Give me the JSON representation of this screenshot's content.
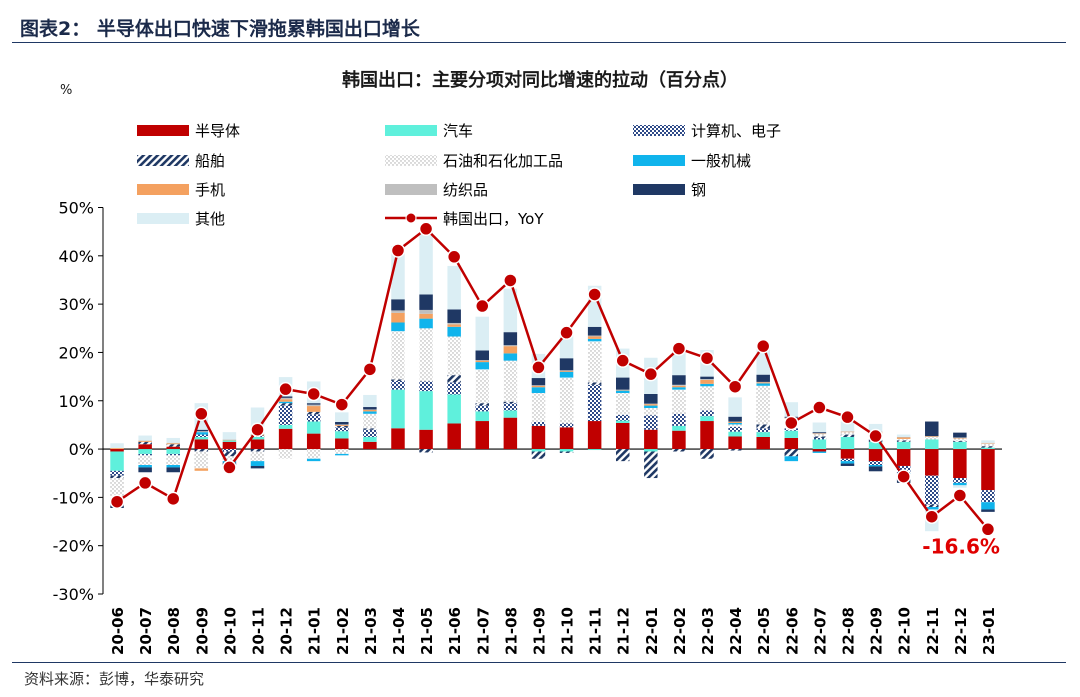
{
  "figure_label": "图表2：  半导体出口快速下滑拖累韩国出口增长",
  "source_text": "资料来源：彭博，华泰研究",
  "chart_data": {
    "type": "bar",
    "title": "韩国出口：主要分项对同比增速的拉动（百分点）",
    "ylabel": "%",
    "ylim": [
      -30,
      50
    ],
    "yticks": [
      50,
      40,
      30,
      20,
      10,
      0,
      -10,
      -20,
      -30
    ],
    "ytick_labels": [
      "50%",
      "40%",
      "30%",
      "20%",
      "10%",
      "0%",
      "-10%",
      "-20%",
      "-30%"
    ],
    "categories": [
      "20-06",
      "20-07",
      "20-08",
      "20-09",
      "20-10",
      "20-11",
      "20-12",
      "21-01",
      "21-02",
      "21-03",
      "21-04",
      "21-05",
      "21-06",
      "21-07",
      "21-08",
      "21-09",
      "21-10",
      "21-11",
      "21-12",
      "22-01",
      "22-02",
      "22-03",
      "22-04",
      "22-05",
      "22-06",
      "22-07",
      "22-08",
      "22-09",
      "22-10",
      "22-11",
      "22-12",
      "23-01"
    ],
    "series": [
      {
        "name": "半导体",
        "kind": "bar",
        "color": "#c00000",
        "values": [
          -0.5,
          1.0,
          0.5,
          2.0,
          1.5,
          2.0,
          4.2,
          3.2,
          2.2,
          1.5,
          4.3,
          4.0,
          5.3,
          5.8,
          6.5,
          4.8,
          4.5,
          5.8,
          5.4,
          4.0,
          3.8,
          5.8,
          2.6,
          2.5,
          2.3,
          -0.5,
          -2.0,
          -2.5,
          -3.5,
          -5.5,
          -6.0,
          -8.5
        ]
      },
      {
        "name": "汽车",
        "kind": "bar",
        "color": "#5ff0dc",
        "values": [
          -4.0,
          -1.0,
          -1.0,
          0.5,
          0.3,
          0.5,
          0.8,
          2.5,
          1.5,
          1.0,
          8.0,
          8.0,
          6.0,
          2.0,
          1.5,
          -0.5,
          -0.5,
          -0.2,
          0.5,
          -0.5,
          1.0,
          1.0,
          1.0,
          1.0,
          1.5,
          2.0,
          2.5,
          1.5,
          1.5,
          2.0,
          1.5,
          0.3
        ]
      },
      {
        "name": "计算机、电子",
        "kind": "bar",
        "color": "#2e4a88",
        "pattern": "checker",
        "values": [
          -1.0,
          -0.3,
          -0.3,
          0.5,
          -0.5,
          0.3,
          4.0,
          1.5,
          0.8,
          1.5,
          1.8,
          2.0,
          2.5,
          1.2,
          1.5,
          0.8,
          0.8,
          7.5,
          1.2,
          3.0,
          2.5,
          1.2,
          1.0,
          0.8,
          0.5,
          0.3,
          -0.5,
          -0.8,
          -1.5,
          -6.0,
          -1.0,
          -2.5
        ]
      },
      {
        "name": "船舶",
        "kind": "bar",
        "color": "#1f3864",
        "pattern": "stripe",
        "values": [
          -0.5,
          0.5,
          0.5,
          -0.5,
          -1.0,
          -0.5,
          0.5,
          0.5,
          0.3,
          0.3,
          0.3,
          -0.7,
          1.5,
          0.5,
          0.3,
          -1.5,
          -0.3,
          0.5,
          -2.5,
          -5.5,
          -0.5,
          -2.0,
          -0.3,
          0.8,
          -1.5,
          0.3,
          0.5,
          0.5,
          0.3,
          -0.5,
          0.2,
          0.3
        ]
      },
      {
        "name": "石油和石化加工品",
        "kind": "bar",
        "color": "#a6a6a6",
        "pattern": "dots",
        "values": [
          -5.0,
          -2.0,
          -2.0,
          -3.5,
          -1.0,
          -2.0,
          -2.0,
          -2.0,
          -1.0,
          3.0,
          10.0,
          11.0,
          8.0,
          7.0,
          8.5,
          6.0,
          9.5,
          8.5,
          4.5,
          1.5,
          5.0,
          5.0,
          0.5,
          8.0,
          2.0,
          0.5,
          0.5,
          1.0,
          0.3,
          0.5,
          0.5,
          0.5
        ]
      },
      {
        "name": "一般机械",
        "kind": "bar",
        "color": "#10b4ec",
        "values": [
          -0.5,
          -0.5,
          -0.5,
          0.5,
          -0.3,
          -1.0,
          0.3,
          -0.5,
          -0.3,
          0.5,
          1.8,
          2.0,
          2.0,
          1.5,
          1.5,
          1.2,
          1.2,
          0.5,
          0.5,
          0.5,
          0.5,
          0.5,
          0.3,
          0.5,
          -1.0,
          -0.3,
          -0.5,
          -0.3,
          -0.5,
          -0.5,
          -0.5,
          -1.5
        ]
      },
      {
        "name": "手机",
        "kind": "bar",
        "color": "#f4a160",
        "values": [
          0.2,
          0.2,
          0.2,
          -0.5,
          0.1,
          0.2,
          0.5,
          1.2,
          0.2,
          0.3,
          2.0,
          1.0,
          0.5,
          0.3,
          1.5,
          0.3,
          0.2,
          0.5,
          0.1,
          0.3,
          0.3,
          0.8,
          0.2,
          0.2,
          0.1,
          0.1,
          0.1,
          0.5,
          0.3,
          0.1,
          0.1,
          0.1
        ]
      },
      {
        "name": "纺织品",
        "kind": "bar",
        "color": "#bfbfbf",
        "values": [
          -0.2,
          0.1,
          0.1,
          0.2,
          0.1,
          0.1,
          0.3,
          0.3,
          0.1,
          0.1,
          0.5,
          0.8,
          0.3,
          0.1,
          0.2,
          0.1,
          0.1,
          0.2,
          0.1,
          0.1,
          0.2,
          0.2,
          0.1,
          0.1,
          0.1,
          0.1,
          0.1,
          0.2,
          0.1,
          0.1,
          0.1,
          0.1
        ]
      },
      {
        "name": "钢",
        "kind": "bar",
        "color": "#1f3864",
        "values": [
          -0.5,
          -1.0,
          -1.0,
          0.3,
          -0.5,
          -0.5,
          0.3,
          0.3,
          0.5,
          0.5,
          2.3,
          3.2,
          2.8,
          2.0,
          2.7,
          1.5,
          2.5,
          1.8,
          2.5,
          2.0,
          2.0,
          0.5,
          1.0,
          1.5,
          0.2,
          0.2,
          -0.5,
          -1.0,
          -1.5,
          3.0,
          1.0,
          -0.5
        ]
      },
      {
        "name": "其他",
        "kind": "bar",
        "color": "#dbeef4",
        "values": [
          1.0,
          1.0,
          1.0,
          5.5,
          1.5,
          5.5,
          4.0,
          4.5,
          2.0,
          2.5,
          11.0,
          14.0,
          9.0,
          7.0,
          9.0,
          5.0,
          5.5,
          8.5,
          6.0,
          7.5,
          5.0,
          5.5,
          4.0,
          6.5,
          3.0,
          2.0,
          2.0,
          1.5,
          0.5,
          -4.5,
          -0.5,
          0.5
        ]
      },
      {
        "name": "韩国出口，YoY",
        "kind": "line",
        "color": "#c00000",
        "values": [
          -10.9,
          -7.0,
          -10.3,
          7.3,
          -3.8,
          4.0,
          12.4,
          11.4,
          9.2,
          16.5,
          41.1,
          45.6,
          39.8,
          29.6,
          34.9,
          16.9,
          24.1,
          32.0,
          18.3,
          15.5,
          20.8,
          18.8,
          12.9,
          21.3,
          5.4,
          8.6,
          6.6,
          2.7,
          -5.7,
          -14.0,
          -9.6,
          -16.6
        ]
      }
    ],
    "annotations": [
      {
        "text": "-16.6%",
        "category": "23-01",
        "value": -16.6,
        "color": "#e00000"
      }
    ]
  }
}
